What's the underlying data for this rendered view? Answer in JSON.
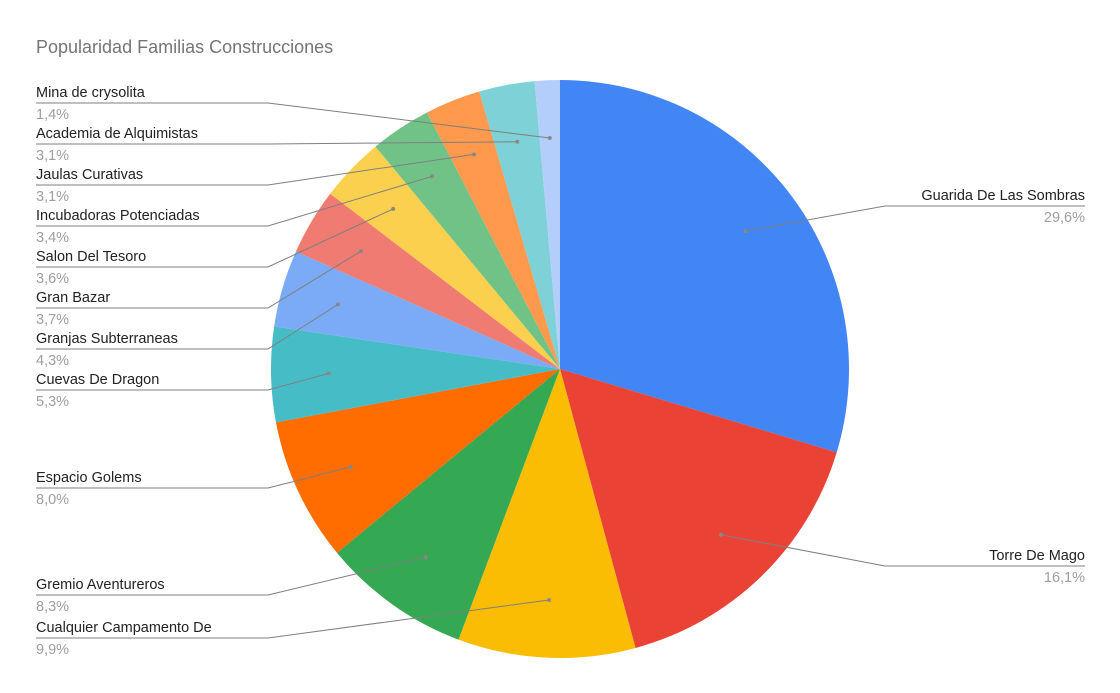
{
  "chart_data": {
    "type": "pie",
    "title": "Popularidad Familias Construcciones",
    "legend": "labels-outside-with-leader-lines",
    "slices": [
      {
        "label": "Guarida De Las Sombras",
        "value": 29.6,
        "display": "29,6%",
        "color": "#4285F4"
      },
      {
        "label": "Torre De Mago",
        "value": 16.1,
        "display": "16,1%",
        "color": "#EA4335"
      },
      {
        "label": "Cualquier Campamento De",
        "value": 9.9,
        "display": "9,9%",
        "color": "#FBBC04"
      },
      {
        "label": "Gremio Aventureros",
        "value": 8.3,
        "display": "8,3%",
        "color": "#34A853"
      },
      {
        "label": "Espacio Golems",
        "value": 8.0,
        "display": "8,0%",
        "color": "#FF6D01"
      },
      {
        "label": "Cuevas De Dragon",
        "value": 5.3,
        "display": "5,3%",
        "color": "#46BDC6"
      },
      {
        "label": "Granjas Subterraneas",
        "value": 4.3,
        "display": "4,3%",
        "color": "#7BAAF7"
      },
      {
        "label": "Gran Bazar",
        "value": 3.7,
        "display": "3,7%",
        "color": "#F07B72"
      },
      {
        "label": "Salon Del Tesoro",
        "value": 3.6,
        "display": "3,6%",
        "color": "#FCD04F"
      },
      {
        "label": "Incubadoras Potenciadas",
        "value": 3.4,
        "display": "3,4%",
        "color": "#71C287"
      },
      {
        "label": "Jaulas Curativas",
        "value": 3.1,
        "display": "3,1%",
        "color": "#FF994D"
      },
      {
        "label": "Academia de Alquimistas",
        "value": 3.1,
        "display": "3,1%",
        "color": "#7ED1D7"
      },
      {
        "label": "Mina de crysolita",
        "value": 1.4,
        "display": "1,4%",
        "color": "#B3CEFB"
      }
    ]
  }
}
